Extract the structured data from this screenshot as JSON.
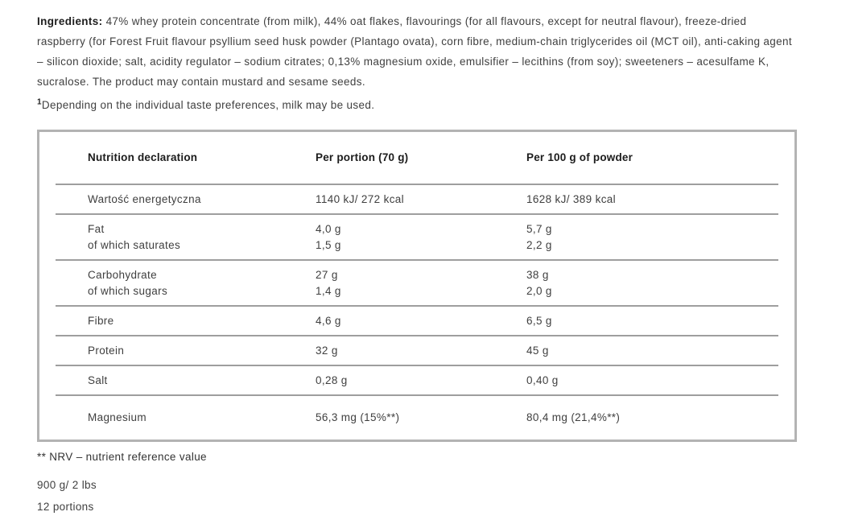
{
  "ingredients": {
    "label": "Ingredients:",
    "text": " 47% whey protein concentrate (from milk), 44% oat flakes, flavourings (for all flavours, except for neutral flavour), freeze-dried raspberry (for Forest Fruit flavour psyllium seed husk powder (Plantago ovata), corn fibre, medium-chain triglycerides oil (MCT oil), anti-caking agent – silicon dioxide; salt, acidity regulator – sodium citrates; 0,13% magnesium oxide, emulsifier – lecithins (from soy); sweeteners – acesulfame K, sucralose. The product may contain mustard and sesame seeds."
  },
  "footnote": {
    "marker": "1",
    "text": "Depending on the individual taste preferences, milk may be used."
  },
  "nutrition_table": {
    "headers": {
      "name": "Nutrition declaration",
      "per_portion": "Per portion (70 g)",
      "per_100g": "Per 100 g of powder"
    },
    "rows": [
      {
        "name": "Wartość energetyczna",
        "per_portion": "1140 kJ/ 272 kcal",
        "per_100g": "1628 kJ/ 389 kcal"
      },
      {
        "name": "Fat\nof which saturates",
        "per_portion": "4,0 g\n1,5 g",
        "per_100g": "5,7 g\n2,2 g"
      },
      {
        "name": "Carbohydrate\nof which sugars",
        "per_portion": "27 g\n1,4 g",
        "per_100g": "38 g\n2,0 g"
      },
      {
        "name": "Fibre",
        "per_portion": "4,6 g",
        "per_100g": "6,5 g"
      },
      {
        "name": "Protein",
        "per_portion": "32 g",
        "per_100g": "45 g"
      },
      {
        "name": "Salt",
        "per_portion": "0,28 g",
        "per_100g": "0,40 g"
      },
      {
        "name": "Magnesium",
        "per_portion": "56,3 mg (15%**)",
        "per_100g": "80,4 mg (21,4%**)"
      }
    ]
  },
  "notes": {
    "nrv": "** NRV – nutrient reference value",
    "weight": "900 g/ 2 lbs",
    "portions": "12 portions"
  },
  "colors": {
    "border": "#b3b3b3",
    "separator": "#9e9e9e",
    "text": "#404040",
    "heading": "#1c1c1c"
  }
}
